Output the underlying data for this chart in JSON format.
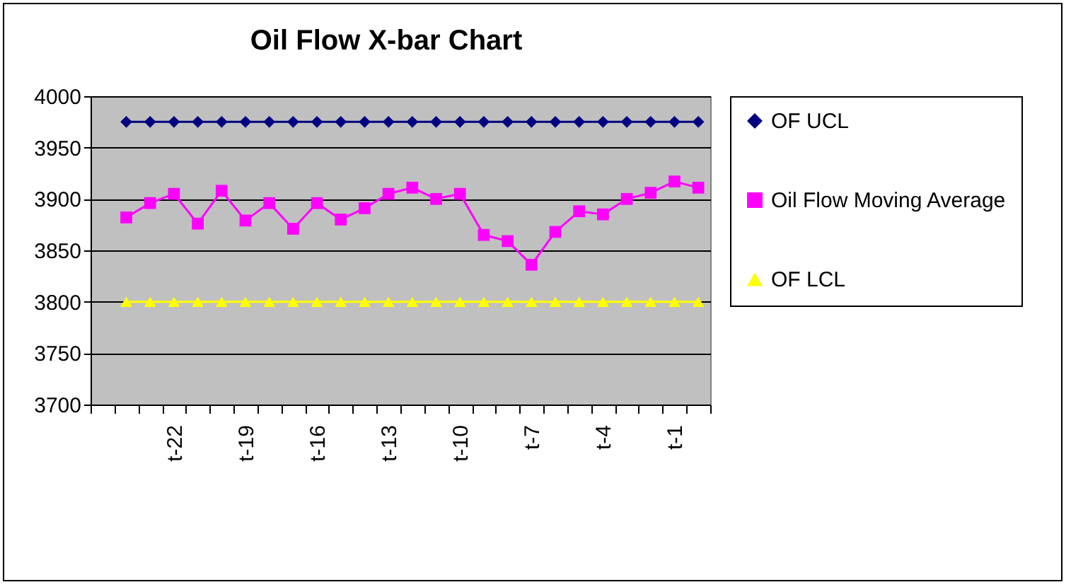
{
  "chart_data": {
    "type": "line",
    "title": "Oil Flow X-bar Chart",
    "categories": [
      null,
      null,
      null,
      "t-22",
      null,
      null,
      "t-19",
      null,
      null,
      "t-16",
      null,
      null,
      "t-13",
      null,
      null,
      "t-10",
      null,
      null,
      "t-7",
      null,
      null,
      "t-4",
      null,
      null,
      "t-1",
      null
    ],
    "series": [
      {
        "name": "OF UCL",
        "color": "#000080",
        "marker": "diamond",
        "values": [
          null,
          3975,
          3975,
          3975,
          3975,
          3975,
          3975,
          3975,
          3975,
          3975,
          3975,
          3975,
          3975,
          3975,
          3975,
          3975,
          3975,
          3975,
          3975,
          3975,
          3975,
          3975,
          3975,
          3975,
          3975,
          3975
        ]
      },
      {
        "name": "Oil Flow Moving Average",
        "color": "#ff00ff",
        "marker": "square",
        "values": [
          null,
          3882,
          3896,
          3905,
          3876,
          3908,
          3879,
          3896,
          3871,
          3896,
          3880,
          3891,
          3905,
          3911,
          3900,
          3905,
          3865,
          3859,
          3836,
          3868,
          3888,
          3885,
          3900,
          3906,
          3917,
          3911
        ]
      },
      {
        "name": "OF LCL",
        "color": "#ffff00",
        "marker": "triangle",
        "values": [
          null,
          3800,
          3800,
          3800,
          3800,
          3800,
          3800,
          3800,
          3800,
          3800,
          3800,
          3800,
          3800,
          3800,
          3800,
          3800,
          3800,
          3800,
          3800,
          3800,
          3800,
          3800,
          3800,
          3800,
          3800,
          3800
        ]
      }
    ],
    "ylim": [
      3700,
      4000
    ],
    "yticks": [
      3700,
      3750,
      3800,
      3850,
      3900,
      3950,
      4000
    ],
    "grid": "y",
    "legend": "right",
    "line_style": "solid"
  }
}
